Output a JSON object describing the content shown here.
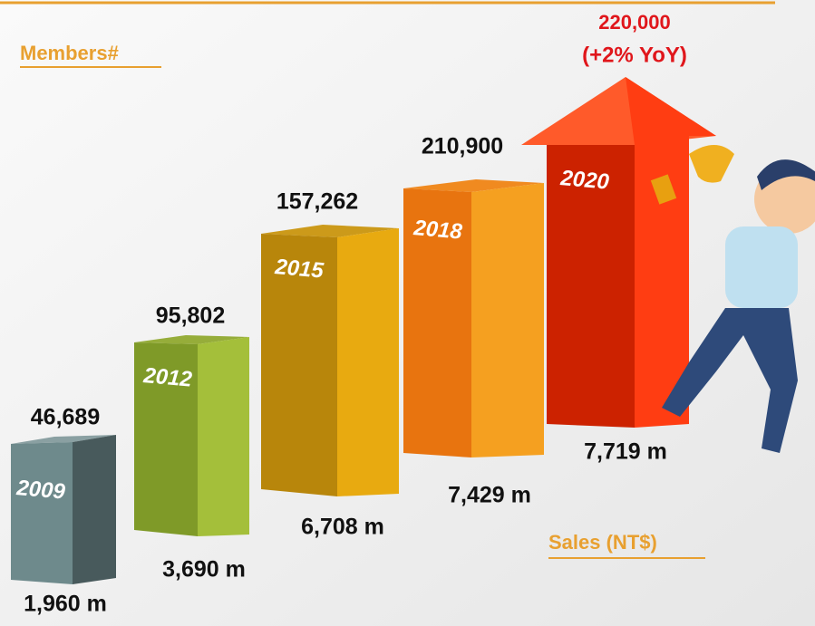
{
  "header": {
    "members_label": "Members#",
    "sales_label": "Sales (NT$)"
  },
  "target": {
    "members": "220,000",
    "growth": "(+2% YoY)"
  },
  "items": [
    {
      "year": "2009",
      "members": "46,689",
      "sales": "1,960 m"
    },
    {
      "year": "2012",
      "members": "95,802",
      "sales": "3,690 m"
    },
    {
      "year": "2015",
      "members": "157,262",
      "sales": "6,708 m"
    },
    {
      "year": "2018",
      "members": "210,900",
      "sales": "7,429 m"
    },
    {
      "year": "2020",
      "members": "",
      "sales": "7,719 m"
    }
  ]
}
